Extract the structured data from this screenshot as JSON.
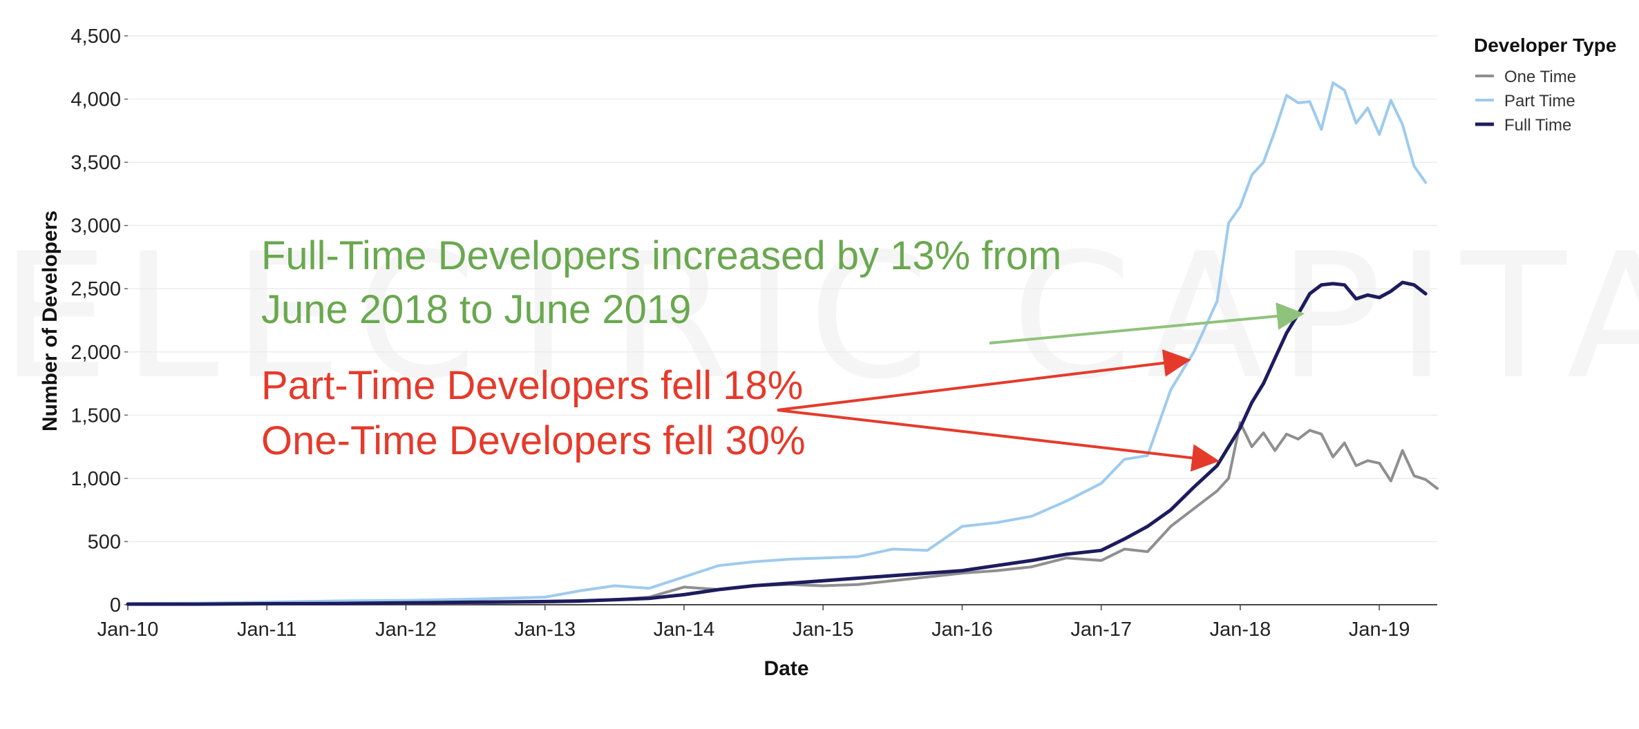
{
  "chart_data": {
    "type": "line",
    "xlabel": "Date",
    "ylabel": "Number of Developers",
    "ylim": [
      0,
      4500
    ],
    "xlim": [
      "2010-01",
      "2019-06"
    ],
    "y_ticks": [
      "0",
      "500",
      "1,000",
      "1,500",
      "2,000",
      "2,500",
      "3,000",
      "3,500",
      "4,000",
      "4,500"
    ],
    "x_ticks": [
      "Jan-10",
      "Jan-11",
      "Jan-12",
      "Jan-13",
      "Jan-14",
      "Jan-15",
      "Jan-16",
      "Jan-17",
      "Jan-18",
      "Jan-19"
    ],
    "grid": "horizontal",
    "legend": {
      "title": "Developer Type",
      "position": "top-right",
      "entries": [
        "One Time",
        "Part Time",
        "Full Time"
      ]
    },
    "watermark": "ELECTRIC CAPITAL",
    "series": [
      {
        "name": "One Time",
        "color": "#8f8f8f",
        "points": [
          [
            "2010-01",
            5
          ],
          [
            "2010-07",
            5
          ],
          [
            "2011-01",
            8
          ],
          [
            "2011-07",
            10
          ],
          [
            "2012-01",
            12
          ],
          [
            "2012-07",
            15
          ],
          [
            "2013-01",
            20
          ],
          [
            "2013-04",
            25
          ],
          [
            "2013-07",
            40
          ],
          [
            "2013-10",
            60
          ],
          [
            "2014-01",
            140
          ],
          [
            "2014-04",
            120
          ],
          [
            "2014-07",
            150
          ],
          [
            "2014-10",
            160
          ],
          [
            "2015-01",
            150
          ],
          [
            "2015-04",
            160
          ],
          [
            "2015-07",
            190
          ],
          [
            "2015-10",
            220
          ],
          [
            "2016-01",
            250
          ],
          [
            "2016-04",
            270
          ],
          [
            "2016-07",
            300
          ],
          [
            "2016-10",
            370
          ],
          [
            "2017-01",
            350
          ],
          [
            "2017-03",
            440
          ],
          [
            "2017-05",
            420
          ],
          [
            "2017-07",
            620
          ],
          [
            "2017-09",
            760
          ],
          [
            "2017-11",
            900
          ],
          [
            "2017-12",
            1000
          ],
          [
            "2018-01",
            1440
          ],
          [
            "2018-02",
            1250
          ],
          [
            "2018-03",
            1360
          ],
          [
            "2018-04",
            1220
          ],
          [
            "2018-05",
            1350
          ],
          [
            "2018-06",
            1310
          ],
          [
            "2018-07",
            1380
          ],
          [
            "2018-08",
            1350
          ],
          [
            "2018-09",
            1170
          ],
          [
            "2018-10",
            1280
          ],
          [
            "2018-11",
            1100
          ],
          [
            "2018-12",
            1140
          ],
          [
            "2019-01",
            1120
          ],
          [
            "2019-02",
            980
          ],
          [
            "2019-03",
            1220
          ],
          [
            "2019-04",
            1020
          ],
          [
            "2019-05",
            990
          ],
          [
            "2019-06",
            920
          ]
        ]
      },
      {
        "name": "Part Time",
        "color": "#9ecbee",
        "points": [
          [
            "2010-01",
            10
          ],
          [
            "2010-07",
            12
          ],
          [
            "2011-01",
            20
          ],
          [
            "2011-07",
            30
          ],
          [
            "2012-01",
            35
          ],
          [
            "2012-07",
            45
          ],
          [
            "2013-01",
            60
          ],
          [
            "2013-04",
            110
          ],
          [
            "2013-07",
            150
          ],
          [
            "2013-10",
            130
          ],
          [
            "2014-01",
            220
          ],
          [
            "2014-04",
            310
          ],
          [
            "2014-07",
            340
          ],
          [
            "2014-10",
            360
          ],
          [
            "2015-01",
            370
          ],
          [
            "2015-04",
            380
          ],
          [
            "2015-07",
            440
          ],
          [
            "2015-10",
            430
          ],
          [
            "2016-01",
            620
          ],
          [
            "2016-04",
            650
          ],
          [
            "2016-07",
            700
          ],
          [
            "2016-10",
            820
          ],
          [
            "2017-01",
            960
          ],
          [
            "2017-03",
            1150
          ],
          [
            "2017-05",
            1180
          ],
          [
            "2017-07",
            1700
          ],
          [
            "2017-09",
            2000
          ],
          [
            "2017-11",
            2400
          ],
          [
            "2017-12",
            3020
          ],
          [
            "2018-01",
            3150
          ],
          [
            "2018-02",
            3400
          ],
          [
            "2018-03",
            3500
          ],
          [
            "2018-04",
            3750
          ],
          [
            "2018-05",
            4030
          ],
          [
            "2018-06",
            3970
          ],
          [
            "2018-07",
            3980
          ],
          [
            "2018-08",
            3760
          ],
          [
            "2018-09",
            4130
          ],
          [
            "2018-10",
            4070
          ],
          [
            "2018-11",
            3810
          ],
          [
            "2018-12",
            3930
          ],
          [
            "2019-01",
            3720
          ],
          [
            "2019-02",
            3990
          ],
          [
            "2019-03",
            3800
          ],
          [
            "2019-04",
            3470
          ],
          [
            "2019-05",
            3340
          ]
        ]
      },
      {
        "name": "Full Time",
        "color": "#1d1c5e",
        "points": [
          [
            "2010-01",
            5
          ],
          [
            "2010-07",
            5
          ],
          [
            "2011-01",
            8
          ],
          [
            "2011-07",
            10
          ],
          [
            "2012-01",
            15
          ],
          [
            "2012-07",
            20
          ],
          [
            "2013-01",
            25
          ],
          [
            "2013-04",
            30
          ],
          [
            "2013-07",
            40
          ],
          [
            "2013-10",
            50
          ],
          [
            "2014-01",
            80
          ],
          [
            "2014-04",
            120
          ],
          [
            "2014-07",
            150
          ],
          [
            "2014-10",
            170
          ],
          [
            "2015-01",
            190
          ],
          [
            "2015-04",
            210
          ],
          [
            "2015-07",
            230
          ],
          [
            "2015-10",
            250
          ],
          [
            "2016-01",
            270
          ],
          [
            "2016-04",
            310
          ],
          [
            "2016-07",
            350
          ],
          [
            "2016-10",
            400
          ],
          [
            "2017-01",
            430
          ],
          [
            "2017-03",
            520
          ],
          [
            "2017-05",
            620
          ],
          [
            "2017-07",
            750
          ],
          [
            "2017-09",
            930
          ],
          [
            "2017-11",
            1100
          ],
          [
            "2017-12",
            1250
          ],
          [
            "2018-01",
            1400
          ],
          [
            "2018-02",
            1600
          ],
          [
            "2018-03",
            1750
          ],
          [
            "2018-04",
            1950
          ],
          [
            "2018-05",
            2150
          ],
          [
            "2018-06",
            2300
          ],
          [
            "2018-07",
            2460
          ],
          [
            "2018-08",
            2530
          ],
          [
            "2018-09",
            2540
          ],
          [
            "2018-10",
            2530
          ],
          [
            "2018-11",
            2420
          ],
          [
            "2018-12",
            2450
          ],
          [
            "2019-01",
            2430
          ],
          [
            "2019-02",
            2480
          ],
          [
            "2019-03",
            2550
          ],
          [
            "2019-04",
            2530
          ],
          [
            "2019-05",
            2460
          ]
        ]
      }
    ],
    "annotations": [
      {
        "lines": [
          "Full-Time Developers increased by 13% from",
          "June 2018 to June 2019"
        ],
        "color": "#6aa84f"
      },
      {
        "lines": [
          "Part-Time Developers fell 18%",
          "One-Time Developers fell 30%"
        ],
        "color": "#e53a2b"
      }
    ]
  }
}
